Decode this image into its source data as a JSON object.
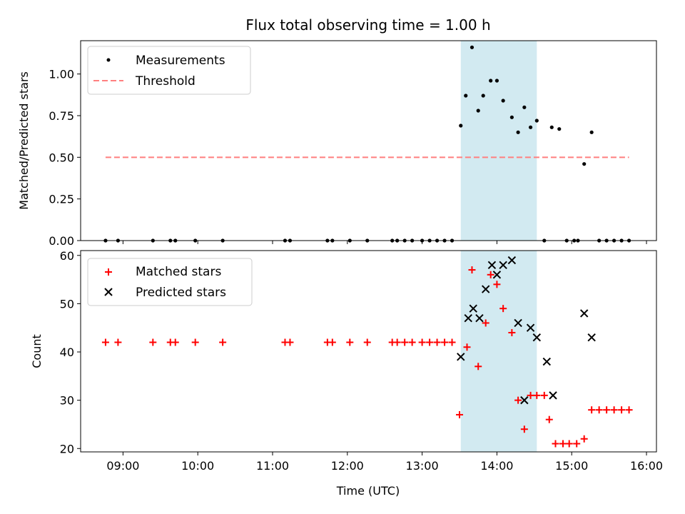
{
  "title": "Flux total observing time = 1.00 h",
  "colors": {
    "shade": "#add8e6",
    "threshold": "#ff7f7f",
    "matched": "#ff0000",
    "predicted": "#000000",
    "measure": "#000000"
  },
  "x_ticks": [
    "09:00",
    "10:00",
    "11:00",
    "12:00",
    "13:00",
    "14:00",
    "15:00",
    "16:00"
  ],
  "xlabel": "Time (UTC)",
  "chart_data": [
    {
      "type": "scatter",
      "panel": "top",
      "ylabel": "Matched/Predicted stars",
      "xlim": [
        "08:26",
        "16:08"
      ],
      "ylim": [
        0,
        1.2
      ],
      "y_ticks": [
        "0.00",
        "0.25",
        "0.50",
        "0.75",
        "1.00"
      ],
      "legend": {
        "placement": "top-left",
        "entries": [
          "Measurements",
          "Threshold"
        ]
      },
      "shaded_span": [
        "13:31",
        "14:32"
      ],
      "threshold": {
        "value": 0.5,
        "x": [
          "08:46",
          "15:46"
        ]
      },
      "series": [
        {
          "name": "Measurements",
          "x": [
            "08:46",
            "08:56",
            "09:24",
            "09:38",
            "09:42",
            "09:58",
            "10:20",
            "11:10",
            "11:14",
            "11:44",
            "11:48",
            "12:02",
            "12:16",
            "12:36",
            "12:40",
            "12:46",
            "12:52",
            "13:00",
            "13:06",
            "13:12",
            "13:18",
            "13:24",
            "13:31",
            "13:35",
            "13:40",
            "13:45",
            "13:49",
            "13:55",
            "14:00",
            "14:05",
            "14:12",
            "14:17",
            "14:22",
            "14:27",
            "14:32",
            "14:38",
            "14:44",
            "14:50",
            "14:56",
            "15:02",
            "15:05",
            "15:10",
            "15:16",
            "15:22",
            "15:28",
            "15:34",
            "15:40",
            "15:46"
          ],
          "y": [
            0,
            0,
            0,
            0,
            0,
            0,
            0,
            0,
            0,
            0,
            0,
            0,
            0,
            0,
            0,
            0,
            0,
            0,
            0,
            0,
            0,
            0,
            0.69,
            0.87,
            1.16,
            0.78,
            0.87,
            0.96,
            0.96,
            0.84,
            0.74,
            0.65,
            0.8,
            0.68,
            0.72,
            0,
            0.68,
            0.67,
            0,
            0,
            0,
            0.46,
            0.65,
            0,
            0,
            0,
            0,
            0
          ]
        }
      ]
    },
    {
      "type": "scatter",
      "panel": "bottom",
      "ylabel": "Count",
      "xlim": [
        "08:26",
        "16:08"
      ],
      "ylim": [
        19.3,
        61
      ],
      "y_ticks": [
        "20",
        "30",
        "40",
        "50",
        "60"
      ],
      "legend": {
        "placement": "top-left",
        "entries": [
          "Matched stars",
          "Predicted stars"
        ]
      },
      "shaded_span": [
        "13:31",
        "14:32"
      ],
      "series": [
        {
          "name": "Matched stars",
          "x": [
            "08:46",
            "08:56",
            "09:24",
            "09:38",
            "09:42",
            "09:58",
            "10:20",
            "11:10",
            "11:14",
            "11:44",
            "11:48",
            "12:02",
            "12:16",
            "12:36",
            "12:40",
            "12:46",
            "12:52",
            "13:00",
            "13:06",
            "13:12",
            "13:18",
            "13:24",
            "13:30",
            "13:36",
            "13:40",
            "13:45",
            "13:51",
            "13:55",
            "14:00",
            "14:05",
            "14:12",
            "14:17",
            "14:22",
            "14:27",
            "14:32",
            "14:38",
            "14:42",
            "14:47",
            "14:53",
            "14:58",
            "15:04",
            "15:10",
            "15:16",
            "15:22",
            "15:28",
            "15:34",
            "15:40",
            "15:46"
          ],
          "y": [
            42,
            42,
            42,
            42,
            42,
            42,
            42,
            42,
            42,
            42,
            42,
            42,
            42,
            42,
            42,
            42,
            42,
            42,
            42,
            42,
            42,
            42,
            27,
            41,
            57,
            37,
            46,
            56,
            54,
            49,
            44,
            30,
            24,
            31,
            31,
            31,
            26,
            21,
            21,
            21,
            21,
            22,
            28,
            28,
            28,
            28,
            28,
            28
          ]
        },
        {
          "name": "Predicted stars",
          "x": [
            "13:31",
            "13:37",
            "13:41",
            "13:46",
            "13:51",
            "13:56",
            "14:00",
            "14:05",
            "14:12",
            "14:17",
            "14:22",
            "14:27",
            "14:32",
            "14:40",
            "14:45",
            "15:10",
            "15:16"
          ],
          "y": [
            39,
            47,
            49,
            47,
            53,
            58,
            56,
            58,
            59,
            46,
            30,
            45,
            43,
            38,
            31,
            48,
            43
          ]
        }
      ]
    }
  ]
}
